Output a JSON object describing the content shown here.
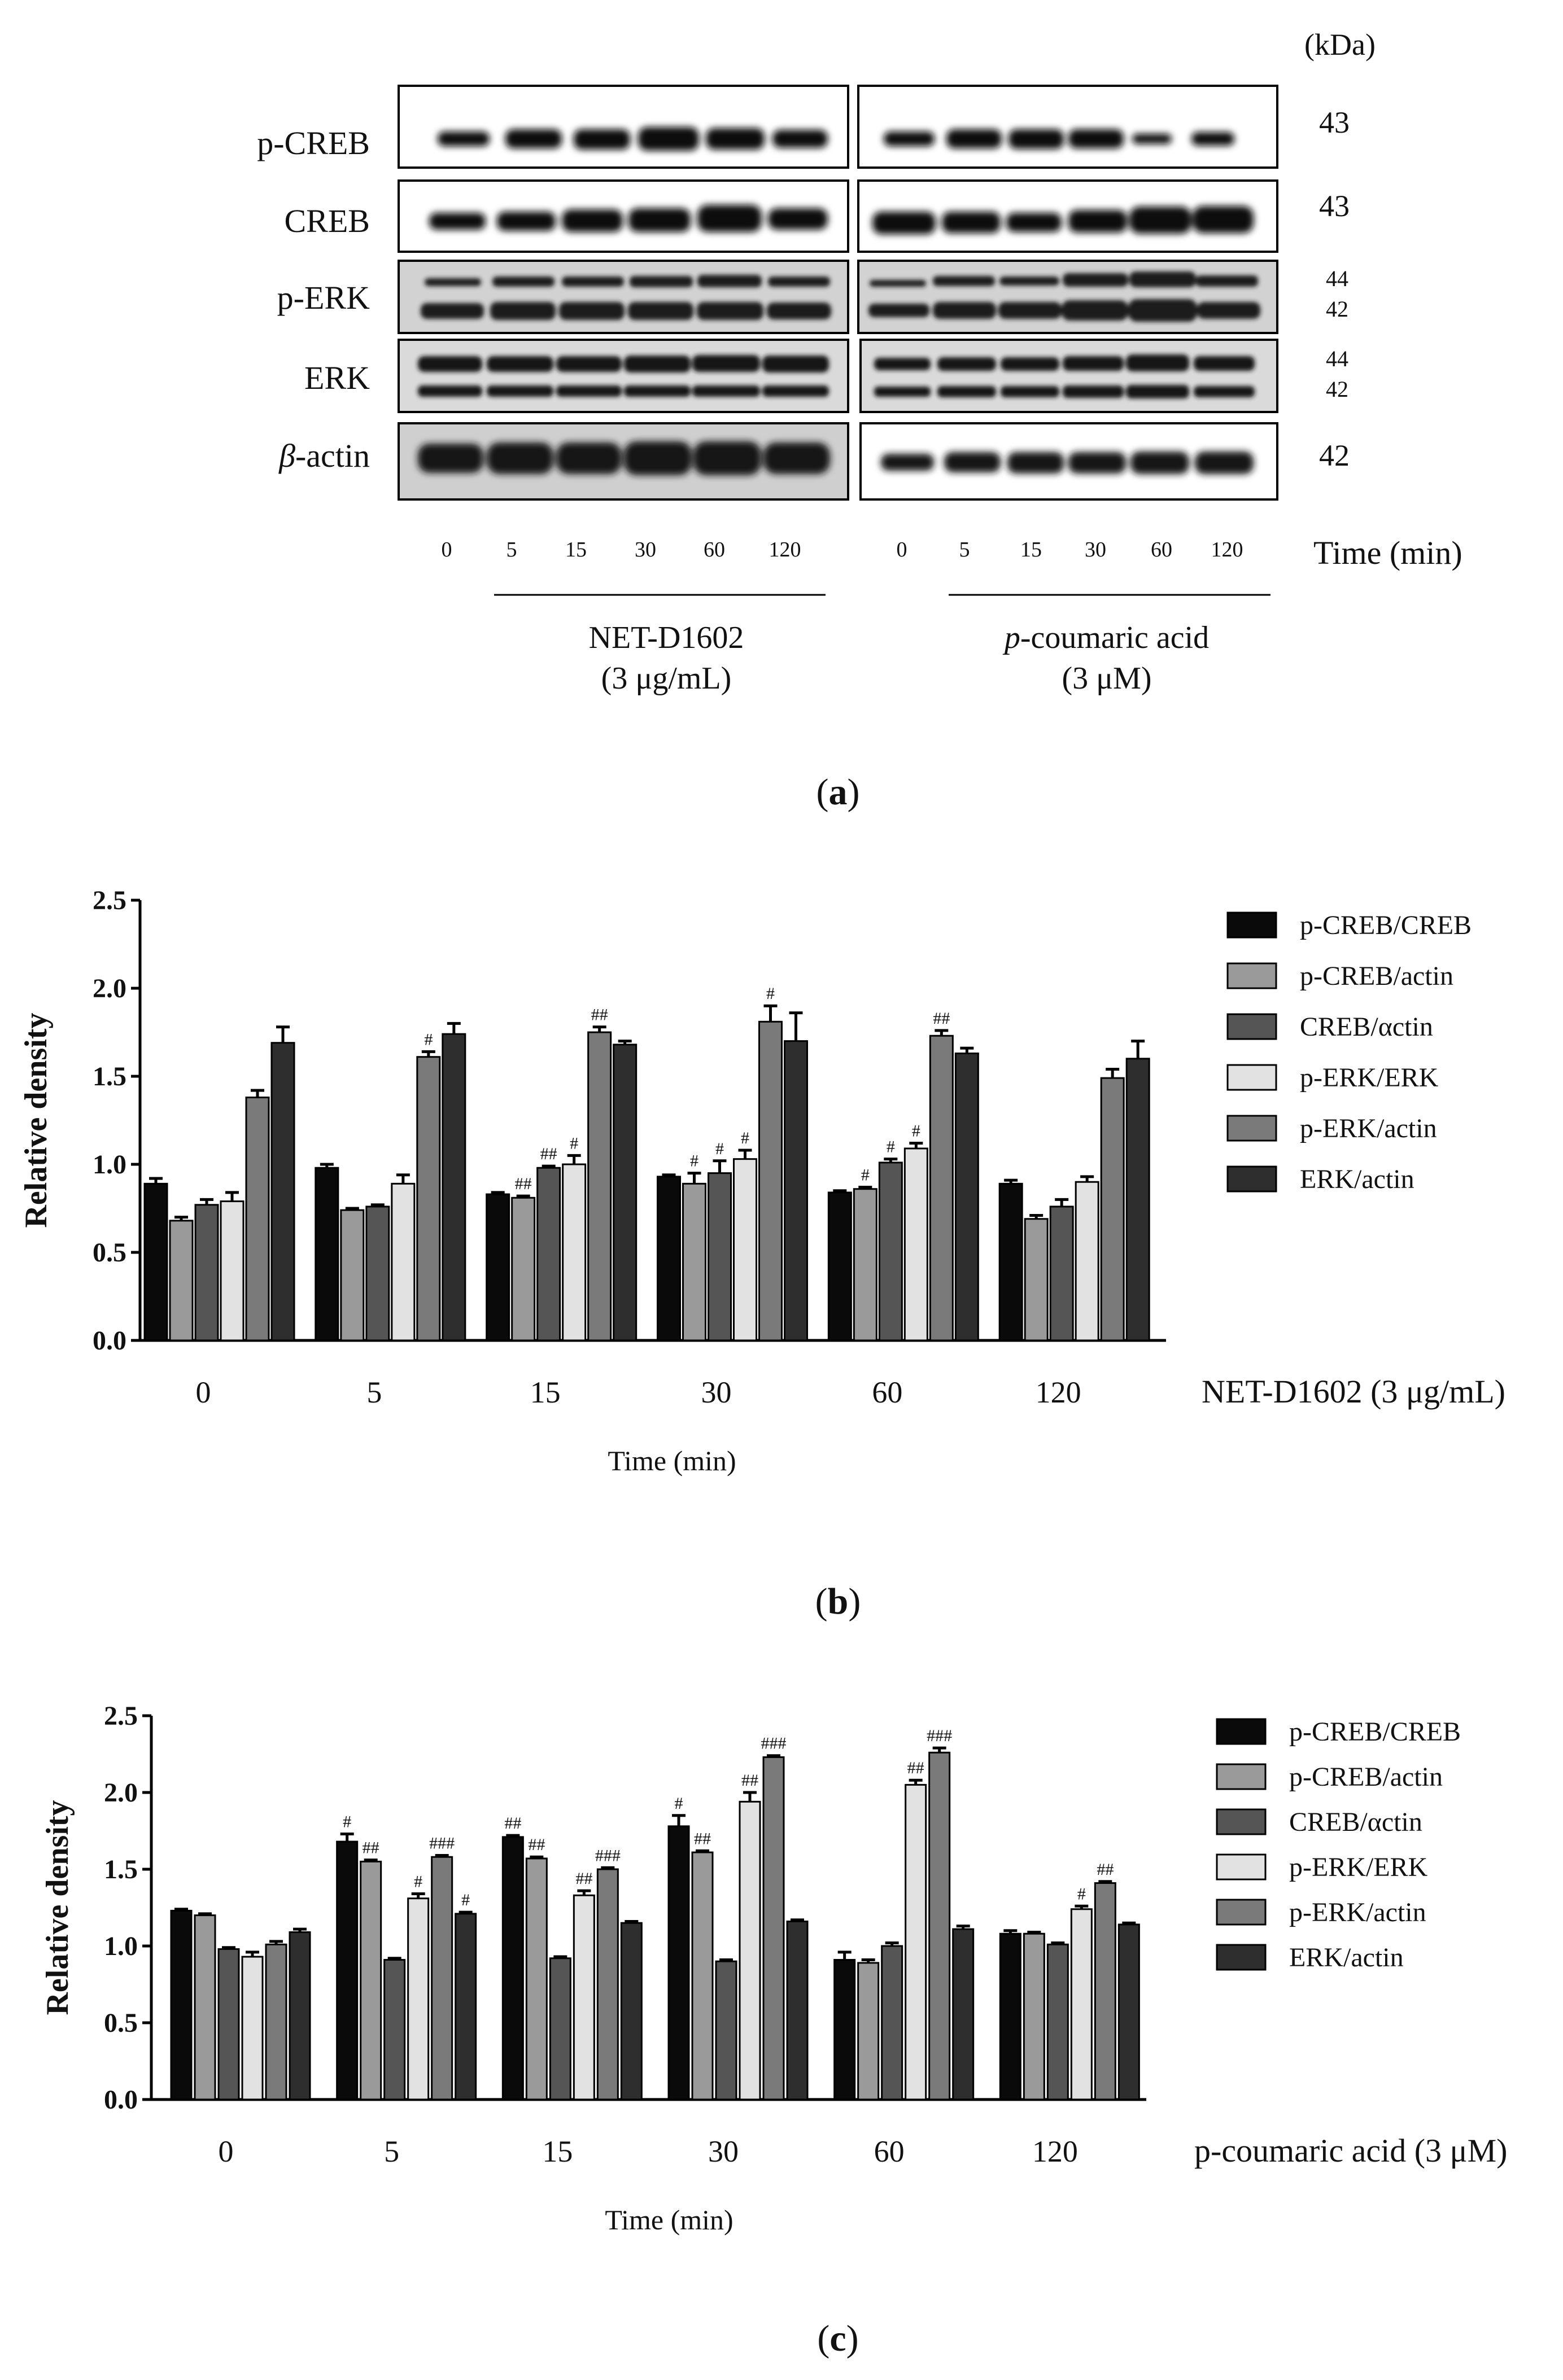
{
  "panel_a": {
    "kda_unit": "(kDa)",
    "rows": [
      {
        "label": "p-CREB",
        "kda": [
          "43"
        ]
      },
      {
        "label": "CREB",
        "kda": [
          "43"
        ]
      },
      {
        "label": "p-ERK",
        "kda": [
          "44",
          "42"
        ]
      },
      {
        "label": "ERK",
        "kda": [
          "44",
          "42"
        ]
      },
      {
        "label_italic_prefix": "β",
        "label_suffix": "-actin",
        "kda": [
          "42"
        ]
      }
    ],
    "time_points": [
      "0",
      "5",
      "15",
      "30",
      "60",
      "120"
    ],
    "time_axis_label": "Time (min)",
    "group_left": {
      "line1": "NET-D1602",
      "line2": "(3 μg/mL)"
    },
    "group_right": {
      "line1_italic": "p",
      "line1_rest": "-coumaric acid",
      "line2": "(3 μM)"
    },
    "panel_letter": "a"
  },
  "panel_b_letter": "b",
  "panel_c_letter": "c",
  "chart_data": [
    {
      "type": "bar",
      "ylabel": "Relative density",
      "xlabel": "Time (min)",
      "treatment_label": "NET-D1602 (3 μg/mL)",
      "categories": [
        "0",
        "5",
        "15",
        "30",
        "60",
        "120"
      ],
      "ylim": [
        0.0,
        2.5
      ],
      "yticks": [
        "0.0",
        "0.5",
        "1.0",
        "1.5",
        "2.0",
        "2.5"
      ],
      "series": [
        {
          "name": "p-CREB/CREB",
          "color": "#0a0a0a",
          "values": [
            0.89,
            0.98,
            0.83,
            0.93,
            0.84,
            0.89
          ],
          "errors": [
            0.03,
            0.02,
            0.01,
            0.01,
            0.01,
            0.02
          ],
          "marks": [
            "",
            "",
            "",
            "",
            "",
            ""
          ]
        },
        {
          "name": "p-CREB/actin",
          "color": "#9a9a9a",
          "values": [
            0.68,
            0.74,
            0.81,
            0.89,
            0.86,
            0.69
          ],
          "errors": [
            0.02,
            0.01,
            0.01,
            0.06,
            0.01,
            0.02
          ],
          "marks": [
            "",
            "",
            "##",
            "#",
            "#",
            ""
          ]
        },
        {
          "name": "CREB/αctin",
          "color": "#555555",
          "values": [
            0.77,
            0.76,
            0.98,
            0.95,
            1.01,
            0.76
          ],
          "errors": [
            0.03,
            0.01,
            0.01,
            0.07,
            0.02,
            0.04
          ],
          "marks": [
            "",
            "",
            "##",
            "#",
            "#",
            ""
          ]
        },
        {
          "name": "p-ERK/ERK",
          "color": "#e2e2e2",
          "values": [
            0.79,
            0.89,
            1.0,
            1.03,
            1.09,
            0.9
          ],
          "errors": [
            0.05,
            0.05,
            0.05,
            0.05,
            0.03,
            0.03
          ],
          "marks": [
            "",
            "",
            "#",
            "#",
            "#",
            ""
          ]
        },
        {
          "name": "p-ERK/actin",
          "color": "#7a7a7a",
          "values": [
            1.38,
            1.61,
            1.75,
            1.81,
            1.73,
            1.49
          ],
          "errors": [
            0.04,
            0.03,
            0.03,
            0.09,
            0.03,
            0.05
          ],
          "marks": [
            "",
            "#",
            "##",
            "#",
            "##",
            ""
          ]
        },
        {
          "name": "ERK/actin",
          "color": "#2e2e2e",
          "values": [
            1.69,
            1.74,
            1.68,
            1.7,
            1.63,
            1.6
          ],
          "errors": [
            0.09,
            0.06,
            0.02,
            0.16,
            0.03,
            0.1
          ],
          "marks": [
            "",
            "",
            "",
            "",
            "",
            ""
          ]
        }
      ]
    },
    {
      "type": "bar",
      "ylabel": "Relative density",
      "xlabel": "Time (min)",
      "treatment_label": "p-coumaric acid (3 μM)",
      "categories": [
        "0",
        "5",
        "15",
        "30",
        "60",
        "120"
      ],
      "ylim": [
        0.0,
        2.5
      ],
      "yticks": [
        "0.0",
        "0.5",
        "1.0",
        "1.5",
        "2.0",
        "2.5"
      ],
      "series": [
        {
          "name": "p-CREB/CREB",
          "color": "#0a0a0a",
          "values": [
            1.23,
            1.68,
            1.71,
            1.78,
            0.91,
            1.08
          ],
          "errors": [
            0.01,
            0.05,
            0.01,
            0.07,
            0.05,
            0.02
          ],
          "marks": [
            "",
            "#",
            "##",
            "#",
            "",
            ""
          ]
        },
        {
          "name": "p-CREB/actin",
          "color": "#9a9a9a",
          "values": [
            1.2,
            1.55,
            1.57,
            1.61,
            0.89,
            1.08
          ],
          "errors": [
            0.01,
            0.01,
            0.01,
            0.01,
            0.02,
            0.01
          ],
          "marks": [
            "",
            "##",
            "##",
            "##",
            "",
            ""
          ]
        },
        {
          "name": "CREB/αctin",
          "color": "#555555",
          "values": [
            0.98,
            0.91,
            0.92,
            0.9,
            1.0,
            1.01
          ],
          "errors": [
            0.01,
            0.01,
            0.01,
            0.01,
            0.02,
            0.01
          ],
          "marks": [
            "",
            "",
            "",
            "",
            "",
            ""
          ]
        },
        {
          "name": "p-ERK/ERK",
          "color": "#e2e2e2",
          "values": [
            0.93,
            1.31,
            1.33,
            1.94,
            2.05,
            1.24
          ],
          "errors": [
            0.03,
            0.03,
            0.03,
            0.06,
            0.03,
            0.02
          ],
          "marks": [
            "",
            "#",
            "##",
            "##",
            "##",
            "#"
          ]
        },
        {
          "name": "p-ERK/actin",
          "color": "#7a7a7a",
          "values": [
            1.01,
            1.58,
            1.5,
            2.23,
            2.26,
            1.41
          ],
          "errors": [
            0.02,
            0.01,
            0.01,
            0.01,
            0.03,
            0.01
          ],
          "marks": [
            "",
            "###",
            "###",
            "###",
            "###",
            "##"
          ]
        },
        {
          "name": "ERK/actin",
          "color": "#2e2e2e",
          "values": [
            1.09,
            1.21,
            1.15,
            1.16,
            1.11,
            1.14
          ],
          "errors": [
            0.02,
            0.01,
            0.01,
            0.01,
            0.02,
            0.01
          ],
          "marks": [
            "",
            "#",
            "",
            "",
            "",
            ""
          ]
        }
      ]
    }
  ]
}
